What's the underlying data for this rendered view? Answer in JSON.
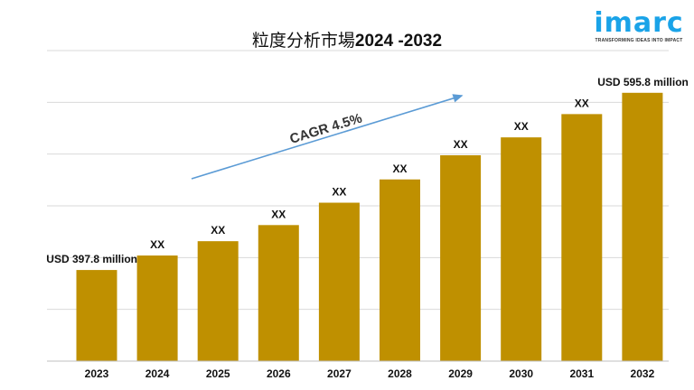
{
  "logo": {
    "brand": "imarc",
    "tagline": "TRANSFORMING IDEAS INTO IMPACT"
  },
  "chart_data": {
    "type": "bar",
    "title_prefix": "粒度分析市場",
    "title_years": "2024 -2032",
    "categories": [
      "2023",
      "2024",
      "2025",
      "2026",
      "2027",
      "2028",
      "2029",
      "2030",
      "2031",
      "2032"
    ],
    "values": [
      397.8,
      414,
      430,
      448,
      473,
      499,
      526,
      546,
      572,
      595.8
    ],
    "data_labels": [
      "USD 397.8 million",
      "XX",
      "XX",
      "XX",
      "XX",
      "XX",
      "XX",
      "XX",
      "XX",
      "USD 595.8 million"
    ],
    "ylim": [
      296,
      643
    ],
    "grid": true,
    "bar_color": "#BF9000",
    "annotation": {
      "text": "CAGR 4.5%",
      "color": "#5B9BD5"
    }
  }
}
